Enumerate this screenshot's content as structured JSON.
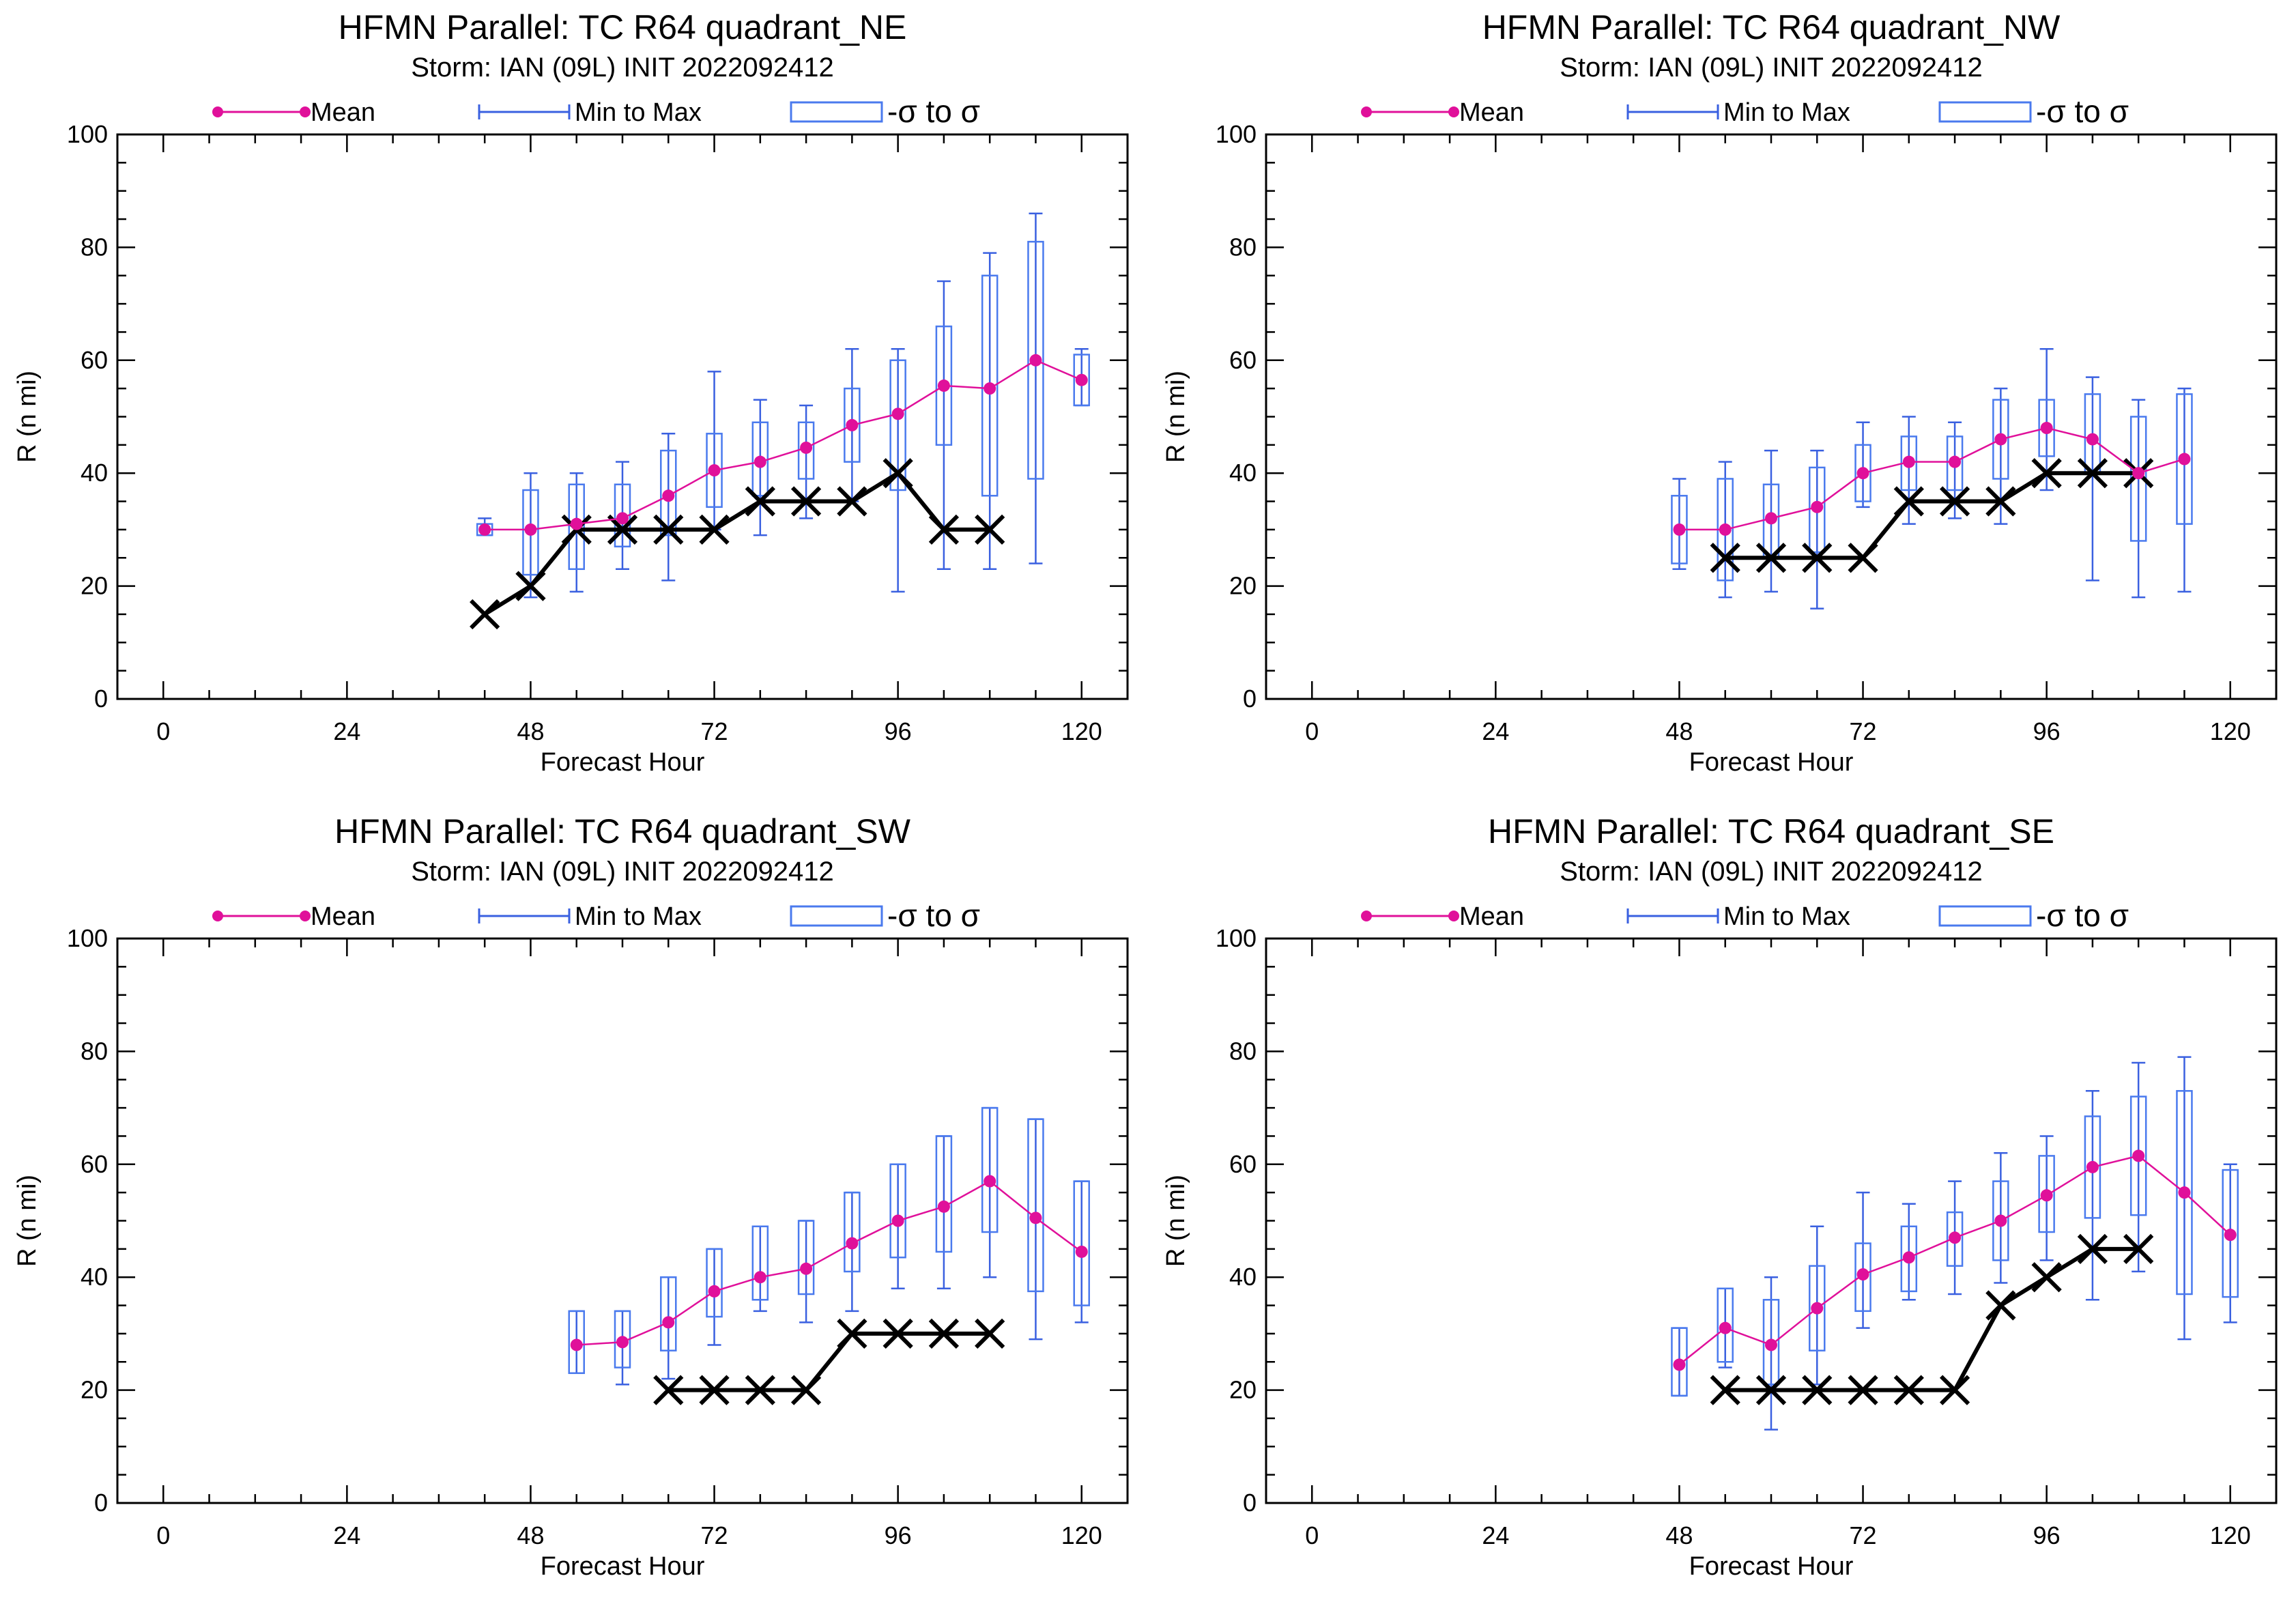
{
  "page": {
    "background": "#ffffff"
  },
  "colors": {
    "mean": "#e0109a",
    "minmax": "#3a60e0",
    "sigma": "#4a7aee",
    "verification": "#000000",
    "frame": "#000000"
  },
  "legend": {
    "mean": "Mean",
    "minmax": "Min to Max",
    "sigma": "-σ to σ"
  },
  "chart_data": [
    {
      "type": "box",
      "title": "HFMN Parallel: TC  R64 quadrant_NE",
      "subtitle": "Storm: IAN (09L) INIT 2022092412",
      "xlabel": "Forecast Hour",
      "ylabel": "R (n mi)",
      "xlim": [
        -6,
        126
      ],
      "ylim": [
        0,
        100
      ],
      "xticks": [
        0,
        24,
        48,
        72,
        96,
        120
      ],
      "xtick_labels": [
        "0",
        "24",
        "48",
        "72",
        "96",
        "120"
      ],
      "yticks": [
        0,
        20,
        40,
        60,
        80,
        100
      ],
      "ytick_labels": [
        "0",
        "20",
        "40",
        "60",
        "80",
        "100"
      ],
      "legend_position": "top",
      "mean": {
        "x": [
          42,
          48,
          54,
          60,
          66,
          72,
          78,
          84,
          90,
          96,
          102,
          108,
          114,
          120
        ],
        "y": [
          30,
          30,
          31,
          32,
          36,
          40.5,
          42,
          44.5,
          48.5,
          50.5,
          55.5,
          55,
          60,
          56.5
        ]
      },
      "minmax": {
        "x": [
          42,
          48,
          54,
          60,
          66,
          72,
          78,
          84,
          90,
          96,
          102,
          108,
          114,
          120
        ],
        "min": [
          29,
          18,
          19,
          23,
          21,
          30,
          29,
          32,
          35,
          19,
          23,
          23,
          24,
          52
        ],
        "max": [
          32,
          40,
          40,
          42,
          47,
          58,
          53,
          52,
          62,
          62,
          74,
          79,
          86,
          62
        ]
      },
      "sigma": {
        "x": [
          42,
          48,
          54,
          60,
          66,
          72,
          78,
          84,
          90,
          96,
          102,
          108,
          114,
          120
        ],
        "low": [
          29,
          22,
          23,
          27,
          29,
          34,
          36,
          39,
          42,
          37,
          45,
          36,
          39,
          52
        ],
        "high": [
          31,
          37,
          38,
          38,
          44,
          47,
          49,
          49,
          55,
          60,
          66,
          75,
          81,
          61
        ]
      },
      "verification": {
        "x": [
          42,
          48,
          54,
          60,
          66,
          72,
          78,
          84,
          90,
          96,
          102,
          108
        ],
        "y": [
          15,
          20,
          30,
          30,
          30,
          30,
          35,
          35,
          35,
          40,
          30,
          30
        ]
      }
    },
    {
      "type": "box",
      "title": "HFMN Parallel: TC  R64 quadrant_NW",
      "subtitle": "Storm: IAN (09L) INIT 2022092412",
      "xlabel": "Forecast Hour",
      "ylabel": "R (n mi)",
      "xlim": [
        -6,
        126
      ],
      "ylim": [
        0,
        100
      ],
      "xticks": [
        0,
        24,
        48,
        72,
        96,
        120
      ],
      "xtick_labels": [
        "0",
        "24",
        "48",
        "72",
        "96",
        "120"
      ],
      "yticks": [
        0,
        20,
        40,
        60,
        80,
        100
      ],
      "ytick_labels": [
        "0",
        "20",
        "40",
        "60",
        "80",
        "100"
      ],
      "legend_position": "top",
      "mean": {
        "x": [
          48,
          54,
          60,
          66,
          72,
          78,
          84,
          90,
          96,
          102,
          108,
          114
        ],
        "y": [
          30,
          30,
          32,
          34,
          40,
          42,
          42,
          46,
          48,
          46,
          40,
          42.5
        ]
      },
      "minmax": {
        "x": [
          48,
          54,
          60,
          66,
          72,
          78,
          84,
          90,
          96,
          102,
          108,
          114
        ],
        "min": [
          23,
          18,
          19,
          16,
          34,
          31,
          32,
          31,
          37,
          21,
          18,
          19
        ],
        "max": [
          39,
          42,
          44,
          44,
          49,
          50,
          49,
          55,
          62,
          57,
          53,
          55
        ]
      },
      "sigma": {
        "x": [
          48,
          54,
          60,
          66,
          72,
          78,
          84,
          90,
          96,
          102,
          108,
          114
        ],
        "low": [
          24,
          21,
          25,
          26,
          35,
          37,
          37,
          39,
          43,
          40,
          28,
          31
        ],
        "high": [
          36,
          39,
          38,
          41,
          45,
          46.5,
          46.5,
          53,
          53,
          54,
          50,
          54
        ]
      },
      "verification": {
        "x": [
          54,
          60,
          66,
          72,
          78,
          84,
          90,
          96,
          102,
          108
        ],
        "y": [
          25,
          25,
          25,
          25,
          35,
          35,
          35,
          40,
          40,
          40
        ]
      }
    },
    {
      "type": "box",
      "title": "HFMN Parallel: TC  R64 quadrant_SW",
      "subtitle": "Storm: IAN (09L) INIT 2022092412",
      "xlabel": "Forecast Hour",
      "ylabel": "R (n mi)",
      "xlim": [
        -6,
        126
      ],
      "ylim": [
        0,
        100
      ],
      "xticks": [
        0,
        24,
        48,
        72,
        96,
        120
      ],
      "xtick_labels": [
        "0",
        "24",
        "48",
        "72",
        "96",
        "120"
      ],
      "yticks": [
        0,
        20,
        40,
        60,
        80,
        100
      ],
      "ytick_labels": [
        "0",
        "20",
        "40",
        "60",
        "80",
        "100"
      ],
      "legend_position": "top",
      "mean": {
        "x": [
          54,
          60,
          66,
          72,
          78,
          84,
          90,
          96,
          102,
          108,
          114,
          120
        ],
        "y": [
          28,
          28.5,
          32,
          37.5,
          40,
          41.5,
          46,
          50,
          52.5,
          57,
          50.5,
          44.5
        ]
      },
      "minmax": {
        "x": [
          54,
          60,
          66,
          72,
          78,
          84,
          90,
          96,
          102,
          108,
          114,
          120
        ],
        "min": [
          23,
          21,
          22,
          28,
          34,
          32,
          34,
          38,
          38,
          40,
          29,
          32
        ],
        "max": [
          34,
          34,
          40,
          45,
          49,
          50,
          55,
          60,
          65,
          70,
          68,
          57
        ]
      },
      "sigma": {
        "x": [
          54,
          60,
          66,
          72,
          78,
          84,
          90,
          96,
          102,
          108,
          114,
          120
        ],
        "low": [
          23,
          24,
          27,
          33,
          36,
          37,
          41,
          43.5,
          44.5,
          48,
          37.5,
          35
        ]
      },
      "verification": {
        "x": [
          66,
          72,
          78,
          84,
          90,
          96,
          102,
          108
        ],
        "y": [
          20,
          20,
          20,
          20,
          30,
          30,
          30,
          30
        ]
      }
    },
    {
      "type": "box",
      "title": "HFMN Parallel: TC  R64 quadrant_SE",
      "subtitle": "Storm: IAN (09L) INIT 2022092412",
      "xlabel": "Forecast Hour",
      "ylabel": "R (n mi)",
      "xlim": [
        -6,
        126
      ],
      "ylim": [
        0,
        100
      ],
      "xticks": [
        0,
        24,
        48,
        72,
        96,
        120
      ],
      "xtick_labels": [
        "0",
        "24",
        "48",
        "72",
        "96",
        "120"
      ],
      "yticks": [
        0,
        20,
        40,
        60,
        80,
        100
      ],
      "ytick_labels": [
        "0",
        "20",
        "40",
        "60",
        "80",
        "100"
      ],
      "legend_position": "top",
      "mean": {
        "x": [
          48,
          54,
          60,
          66,
          72,
          78,
          84,
          90,
          96,
          102,
          108,
          114,
          120
        ],
        "y": [
          24.5,
          31,
          28,
          34.5,
          40.5,
          43.5,
          47,
          50,
          54.5,
          59.5,
          61.5,
          55,
          47.5
        ]
      },
      "minmax": {
        "x": [
          48,
          54,
          60,
          66,
          72,
          78,
          84,
          90,
          96,
          102,
          108,
          114,
          120
        ],
        "min": [
          19,
          24,
          13,
          21,
          31,
          36,
          37,
          39,
          43,
          36,
          41,
          29,
          32
        ],
        "max": [
          31,
          38,
          40,
          49,
          55,
          53,
          57,
          62,
          65,
          73,
          78,
          79,
          60
        ]
      },
      "sigma": {
        "x": [
          48,
          54,
          60,
          66,
          72,
          78,
          84,
          90,
          96,
          102,
          108,
          114,
          120
        ],
        "low": [
          19,
          25,
          21,
          27,
          34,
          37.5,
          42,
          43,
          48,
          50.5,
          51,
          37,
          36.5
        ],
        "high": [
          31,
          38,
          36,
          42,
          46,
          49,
          51.5,
          57,
          61.5,
          68.5,
          72,
          73,
          59
        ]
      },
      "verification": {
        "x": [
          54,
          60,
          66,
          72,
          78,
          84,
          90,
          96,
          102,
          108
        ],
        "y": [
          20,
          20,
          20,
          20,
          20,
          20,
          35,
          40,
          45,
          45
        ]
      }
    }
  ]
}
